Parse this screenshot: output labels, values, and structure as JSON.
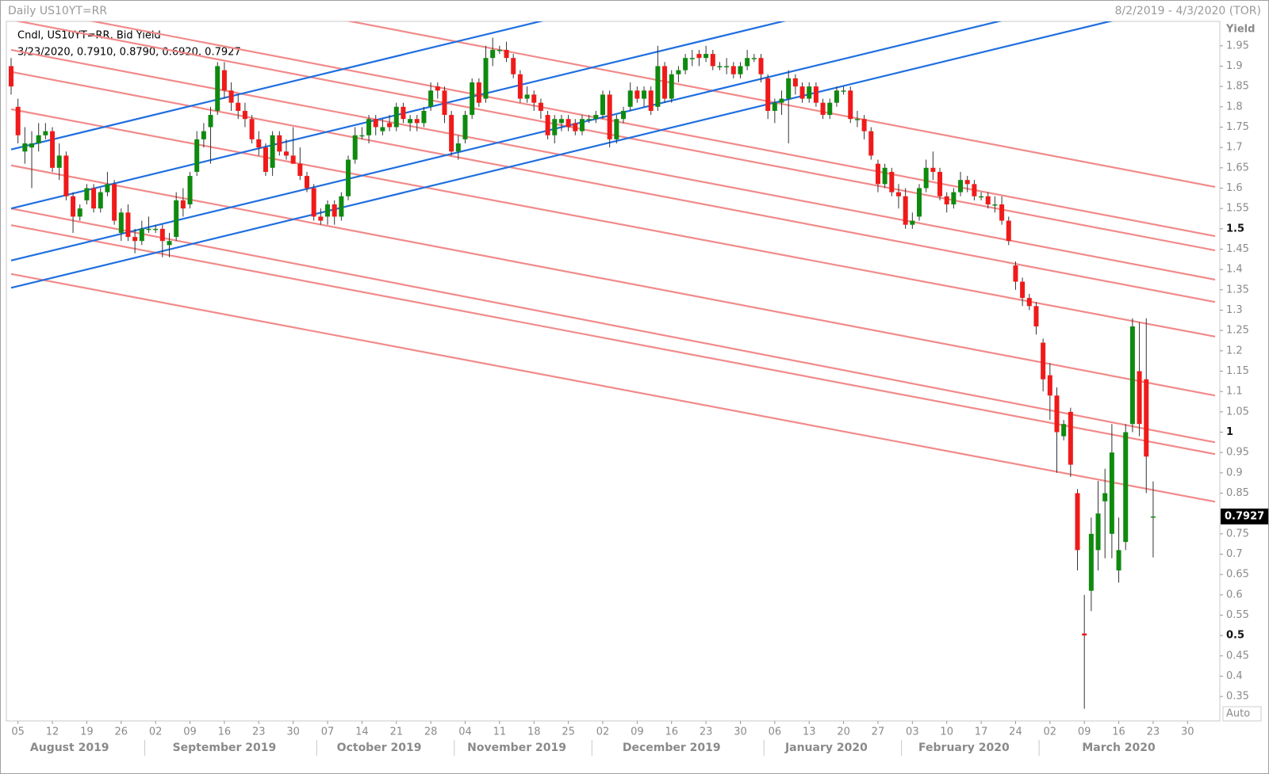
{
  "chart_data": {
    "type": "candlestick",
    "title": "Daily US10YT=RR",
    "subtitle": "8/2/2019 - 4/3/2020 (TOR)",
    "legend": "Cndl, US10YT=RR, Bid Yield",
    "info_line": "3/23/2020, 0.7910, 0.8790, 0.6920, 0.7927",
    "y_label": "Yield",
    "scale_label": "Auto",
    "close_label": "0.7927",
    "up_color": "#0f8a0f",
    "down_color": "#f01a1a",
    "xlim": [
      "8/2/2019",
      "4/3/2020"
    ],
    "ylim": [
      0.29,
      2.01
    ],
    "yticks": [
      0.35,
      0.4,
      0.45,
      0.5,
      0.55,
      0.6,
      0.65,
      0.7,
      0.75,
      0.85,
      0.9,
      0.95,
      1,
      1.05,
      1.1,
      1.15,
      1.2,
      1.25,
      1.3,
      1.35,
      1.4,
      1.45,
      1.5,
      1.55,
      1.6,
      1.65,
      1.7,
      1.75,
      1.8,
      1.85,
      1.9,
      1.95
    ],
    "xticks": [
      {
        "value": "8/5/2019",
        "label": "05"
      },
      {
        "value": "8/12/2019",
        "label": "12"
      },
      {
        "value": "8/19/2019",
        "label": "19"
      },
      {
        "value": "8/26/2019",
        "label": "26"
      },
      {
        "value": "9/2/2019",
        "label": "02"
      },
      {
        "value": "9/9/2019",
        "label": "09"
      },
      {
        "value": "9/16/2019",
        "label": "16"
      },
      {
        "value": "9/23/2019",
        "label": "23"
      },
      {
        "value": "9/30/2019",
        "label": "30"
      },
      {
        "value": "10/7/2019",
        "label": "07"
      },
      {
        "value": "10/14/2019",
        "label": "14"
      },
      {
        "value": "10/21/2019",
        "label": "21"
      },
      {
        "value": "10/28/2019",
        "label": "28"
      },
      {
        "value": "11/4/2019",
        "label": "04"
      },
      {
        "value": "11/11/2019",
        "label": "11"
      },
      {
        "value": "11/18/2019",
        "label": "18"
      },
      {
        "value": "11/25/2019",
        "label": "25"
      },
      {
        "value": "12/2/2019",
        "label": "02"
      },
      {
        "value": "12/9/2019",
        "label": "09"
      },
      {
        "value": "12/16/2019",
        "label": "16"
      },
      {
        "value": "12/23/2019",
        "label": "23"
      },
      {
        "value": "12/30/2019",
        "label": "30"
      },
      {
        "value": "1/6/2020",
        "label": "06"
      },
      {
        "value": "1/13/2020",
        "label": "13"
      },
      {
        "value": "1/20/2020",
        "label": "20"
      },
      {
        "value": "1/27/2020",
        "label": "27"
      },
      {
        "value": "2/3/2020",
        "label": "03"
      },
      {
        "value": "2/10/2020",
        "label": "10"
      },
      {
        "value": "2/17/2020",
        "label": "17"
      },
      {
        "value": "2/24/2020",
        "label": "24"
      },
      {
        "value": "3/2/2020",
        "label": "02"
      },
      {
        "value": "3/9/2020",
        "label": "09"
      },
      {
        "value": "3/16/2020",
        "label": "16"
      },
      {
        "value": "3/23/2020",
        "label": "23"
      },
      {
        "value": "3/30/2020",
        "label": "30"
      }
    ],
    "months": [
      "August 2019",
      "September 2019",
      "October 2019",
      "November 2019",
      "December 2019",
      "January 2020",
      "February 2020",
      "March 2020"
    ],
    "trendlines": [
      {
        "color": "#f28a8a",
        "start": 2.17,
        "end": 1.603
      },
      {
        "color": "#f28a8a",
        "start": 2.049,
        "end": 1.482
      },
      {
        "color": "#f28a8a",
        "start": 2.014,
        "end": 1.447
      },
      {
        "color": "#f28a8a",
        "start": 1.94,
        "end": 1.375
      },
      {
        "color": "#f28a8a",
        "start": 1.886,
        "end": 1.32
      },
      {
        "color": "#f28a8a",
        "start": 1.794,
        "end": 1.235
      },
      {
        "color": "#f28a8a",
        "start": 1.656,
        "end": 1.09
      },
      {
        "color": "#f28a8a",
        "start": 1.55,
        "end": 0.975
      },
      {
        "color": "#f28a8a",
        "start": 1.509,
        "end": 0.946
      },
      {
        "color": "#f28a8a",
        "start": 1.389,
        "end": 0.829
      },
      {
        "color": "#1f6fe0",
        "start": 1.695,
        "end": 2.412
      },
      {
        "color": "#1f6fe0",
        "start": 1.55,
        "end": 2.268
      },
      {
        "color": "#1f6fe0",
        "start": 1.422,
        "end": 2.139
      },
      {
        "color": "#1f6fe0",
        "start": 1.355,
        "end": 2.073
      }
    ],
    "x": [
      "8/2/2019",
      "8/5/2019",
      "8/6/2019",
      "8/7/2019",
      "8/8/2019",
      "8/9/2019",
      "8/12/2019",
      "8/13/2019",
      "8/14/2019",
      "8/15/2019",
      "8/16/2019",
      "8/19/2019",
      "8/20/2019",
      "8/21/2019",
      "8/22/2019",
      "8/23/2019",
      "8/26/2019",
      "8/27/2019",
      "8/28/2019",
      "8/29/2019",
      "8/30/2019",
      "9/2/2019",
      "9/3/2019",
      "9/4/2019",
      "9/5/2019",
      "9/6/2019",
      "9/9/2019",
      "9/10/2019",
      "9/11/2019",
      "9/12/2019",
      "9/13/2019",
      "9/16/2019",
      "9/17/2019",
      "9/18/2019",
      "9/19/2019",
      "9/20/2019",
      "9/23/2019",
      "9/24/2019",
      "9/25/2019",
      "9/26/2019",
      "9/27/2019",
      "9/30/2019",
      "10/1/2019",
      "10/2/2019",
      "10/3/2019",
      "10/4/2019",
      "10/7/2019",
      "10/8/2019",
      "10/9/2019",
      "10/10/2019",
      "10/11/2019",
      "10/14/2019",
      "10/15/2019",
      "10/16/2019",
      "10/17/2019",
      "10/18/2019",
      "10/21/2019",
      "10/22/2019",
      "10/23/2019",
      "10/24/2019",
      "10/25/2019",
      "10/28/2019",
      "10/29/2019",
      "10/30/2019",
      "10/31/2019",
      "11/1/2019",
      "11/4/2019",
      "11/5/2019",
      "11/6/2019",
      "11/7/2019",
      "11/8/2019",
      "11/11/2019",
      "11/12/2019",
      "11/13/2019",
      "11/14/2019",
      "11/15/2019",
      "11/18/2019",
      "11/19/2019",
      "11/20/2019",
      "11/21/2019",
      "11/22/2019",
      "11/25/2019",
      "11/26/2019",
      "11/27/2019",
      "11/28/2019",
      "11/29/2019",
      "12/2/2019",
      "12/3/2019",
      "12/4/2019",
      "12/5/2019",
      "12/6/2019",
      "12/9/2019",
      "12/10/2019",
      "12/11/2019",
      "12/12/2019",
      "12/13/2019",
      "12/16/2019",
      "12/17/2019",
      "12/18/2019",
      "12/19/2019",
      "12/20/2019",
      "12/23/2019",
      "12/24/2019",
      "12/25/2019",
      "12/26/2019",
      "12/27/2019",
      "12/30/2019",
      "12/31/2019",
      "1/1/2020",
      "1/2/2020",
      "1/3/2020",
      "1/6/2020",
      "1/7/2020",
      "1/8/2020",
      "1/9/2020",
      "1/10/2020",
      "1/13/2020",
      "1/14/2020",
      "1/15/2020",
      "1/16/2020",
      "1/17/2020",
      "1/20/2020",
      "1/21/2020",
      "1/22/2020",
      "1/23/2020",
      "1/24/2020",
      "1/27/2020",
      "1/28/2020",
      "1/29/2020",
      "1/30/2020",
      "1/31/2020",
      "2/3/2020",
      "2/4/2020",
      "2/5/2020",
      "2/6/2020",
      "2/7/2020",
      "2/10/2020",
      "2/11/2020",
      "2/12/2020",
      "2/13/2020",
      "2/14/2020",
      "2/17/2020",
      "2/18/2020",
      "2/19/2020",
      "2/20/2020",
      "2/21/2020",
      "2/24/2020",
      "2/25/2020",
      "2/26/2020",
      "2/27/2020",
      "2/28/2020",
      "3/2/2020",
      "3/3/2020",
      "3/4/2020",
      "3/5/2020",
      "3/6/2020",
      "3/9/2020",
      "3/10/2020",
      "3/11/2020",
      "3/12/2020",
      "3/13/2020",
      "3/16/2020",
      "3/17/2020",
      "3/18/2020",
      "3/19/2020",
      "3/20/2020",
      "3/23/2020"
    ],
    "ohlc": [
      [
        1.9,
        1.92,
        1.83,
        1.85
      ],
      [
        1.8,
        1.82,
        1.71,
        1.73
      ],
      [
        1.69,
        1.75,
        1.66,
        1.71
      ],
      [
        1.7,
        1.74,
        1.6,
        1.71
      ],
      [
        1.71,
        1.76,
        1.69,
        1.73
      ],
      [
        1.73,
        1.76,
        1.72,
        1.74
      ],
      [
        1.74,
        1.75,
        1.64,
        1.65
      ],
      [
        1.65,
        1.71,
        1.62,
        1.68
      ],
      [
        1.68,
        1.69,
        1.57,
        1.58
      ],
      [
        1.58,
        1.59,
        1.49,
        1.53
      ],
      [
        1.53,
        1.56,
        1.52,
        1.55
      ],
      [
        1.57,
        1.61,
        1.56,
        1.6
      ],
      [
        1.6,
        1.61,
        1.54,
        1.55
      ],
      [
        1.55,
        1.6,
        1.54,
        1.59
      ],
      [
        1.59,
        1.64,
        1.58,
        1.61
      ],
      [
        1.61,
        1.62,
        1.51,
        1.52
      ],
      [
        1.49,
        1.55,
        1.47,
        1.54
      ],
      [
        1.54,
        1.56,
        1.47,
        1.48
      ],
      [
        1.48,
        1.5,
        1.44,
        1.47
      ],
      [
        1.47,
        1.52,
        1.46,
        1.5
      ],
      [
        1.5,
        1.53,
        1.49,
        1.5
      ],
      [
        1.5,
        1.51,
        1.49,
        1.5
      ],
      [
        1.5,
        1.51,
        1.43,
        1.47
      ],
      [
        1.46,
        1.49,
        1.43,
        1.47
      ],
      [
        1.48,
        1.59,
        1.47,
        1.57
      ],
      [
        1.57,
        1.6,
        1.53,
        1.55
      ],
      [
        1.56,
        1.64,
        1.55,
        1.63
      ],
      [
        1.64,
        1.74,
        1.63,
        1.72
      ],
      [
        1.72,
        1.76,
        1.7,
        1.74
      ],
      [
        1.75,
        1.8,
        1.66,
        1.78
      ],
      [
        1.79,
        1.91,
        1.78,
        1.9
      ],
      [
        1.89,
        1.91,
        1.82,
        1.84
      ],
      [
        1.84,
        1.86,
        1.79,
        1.81
      ],
      [
        1.81,
        1.83,
        1.77,
        1.79
      ],
      [
        1.79,
        1.81,
        1.75,
        1.77
      ],
      [
        1.77,
        1.78,
        1.71,
        1.72
      ],
      [
        1.72,
        1.74,
        1.68,
        1.7
      ],
      [
        1.7,
        1.71,
        1.63,
        1.64
      ],
      [
        1.65,
        1.74,
        1.63,
        1.73
      ],
      [
        1.73,
        1.74,
        1.68,
        1.69
      ],
      [
        1.69,
        1.72,
        1.67,
        1.68
      ],
      [
        1.68,
        1.75,
        1.66,
        1.66
      ],
      [
        1.66,
        1.7,
        1.62,
        1.63
      ],
      [
        1.63,
        1.64,
        1.59,
        1.6
      ],
      [
        1.6,
        1.61,
        1.52,
        1.53
      ],
      [
        1.53,
        1.55,
        1.51,
        1.52
      ],
      [
        1.53,
        1.57,
        1.51,
        1.56
      ],
      [
        1.56,
        1.57,
        1.51,
        1.53
      ],
      [
        1.53,
        1.59,
        1.52,
        1.58
      ],
      [
        1.58,
        1.68,
        1.57,
        1.67
      ],
      [
        1.67,
        1.75,
        1.66,
        1.73
      ],
      [
        1.73,
        1.75,
        1.72,
        1.73
      ],
      [
        1.73,
        1.78,
        1.71,
        1.77
      ],
      [
        1.77,
        1.78,
        1.73,
        1.75
      ],
      [
        1.74,
        1.77,
        1.73,
        1.75
      ],
      [
        1.76,
        1.78,
        1.74,
        1.75
      ],
      [
        1.75,
        1.81,
        1.74,
        1.8
      ],
      [
        1.8,
        1.81,
        1.76,
        1.77
      ],
      [
        1.76,
        1.78,
        1.74,
        1.77
      ],
      [
        1.77,
        1.78,
        1.74,
        1.76
      ],
      [
        1.76,
        1.8,
        1.75,
        1.79
      ],
      [
        1.8,
        1.86,
        1.79,
        1.84
      ],
      [
        1.85,
        1.86,
        1.82,
        1.84
      ],
      [
        1.84,
        1.85,
        1.76,
        1.78
      ],
      [
        1.78,
        1.79,
        1.68,
        1.69
      ],
      [
        1.69,
        1.73,
        1.67,
        1.71
      ],
      [
        1.72,
        1.79,
        1.71,
        1.78
      ],
      [
        1.78,
        1.87,
        1.77,
        1.86
      ],
      [
        1.86,
        1.87,
        1.8,
        1.81
      ],
      [
        1.82,
        1.95,
        1.81,
        1.92
      ],
      [
        1.92,
        1.97,
        1.9,
        1.94
      ],
      [
        1.94,
        1.95,
        1.93,
        1.94
      ],
      [
        1.94,
        1.96,
        1.91,
        1.92
      ],
      [
        1.92,
        1.93,
        1.87,
        1.88
      ],
      [
        1.88,
        1.89,
        1.81,
        1.82
      ],
      [
        1.82,
        1.85,
        1.81,
        1.83
      ],
      [
        1.83,
        1.84,
        1.79,
        1.81
      ],
      [
        1.81,
        1.82,
        1.77,
        1.79
      ],
      [
        1.78,
        1.79,
        1.72,
        1.73
      ],
      [
        1.73,
        1.78,
        1.71,
        1.77
      ],
      [
        1.76,
        1.78,
        1.74,
        1.77
      ],
      [
        1.77,
        1.78,
        1.74,
        1.75
      ],
      [
        1.76,
        1.77,
        1.73,
        1.74
      ],
      [
        1.74,
        1.78,
        1.73,
        1.77
      ],
      [
        1.77,
        1.78,
        1.76,
        1.77
      ],
      [
        1.77,
        1.79,
        1.76,
        1.78
      ],
      [
        1.78,
        1.84,
        1.77,
        1.83
      ],
      [
        1.83,
        1.84,
        1.7,
        1.72
      ],
      [
        1.72,
        1.78,
        1.71,
        1.77
      ],
      [
        1.77,
        1.8,
        1.76,
        1.79
      ],
      [
        1.8,
        1.86,
        1.79,
        1.84
      ],
      [
        1.84,
        1.85,
        1.81,
        1.82
      ],
      [
        1.82,
        1.85,
        1.8,
        1.84
      ],
      [
        1.84,
        1.85,
        1.78,
        1.79
      ],
      [
        1.8,
        1.95,
        1.79,
        1.9
      ],
      [
        1.9,
        1.91,
        1.81,
        1.82
      ],
      [
        1.82,
        1.89,
        1.81,
        1.88
      ],
      [
        1.88,
        1.9,
        1.86,
        1.89
      ],
      [
        1.89,
        1.93,
        1.88,
        1.92
      ],
      [
        1.92,
        1.94,
        1.9,
        1.92
      ],
      [
        1.93,
        1.94,
        1.9,
        1.92
      ],
      [
        1.92,
        1.95,
        1.91,
        1.93
      ],
      [
        1.93,
        1.94,
        1.89,
        1.9
      ],
      [
        1.9,
        1.91,
        1.89,
        1.9
      ],
      [
        1.9,
        1.92,
        1.88,
        1.9
      ],
      [
        1.9,
        1.91,
        1.87,
        1.88
      ],
      [
        1.88,
        1.91,
        1.87,
        1.9
      ],
      [
        1.9,
        1.94,
        1.89,
        1.92
      ],
      [
        1.92,
        1.93,
        1.91,
        1.92
      ],
      [
        1.92,
        1.93,
        1.86,
        1.88
      ],
      [
        1.87,
        1.88,
        1.77,
        1.79
      ],
      [
        1.79,
        1.82,
        1.76,
        1.81
      ],
      [
        1.81,
        1.84,
        1.78,
        1.82
      ],
      [
        1.82,
        1.89,
        1.71,
        1.87
      ],
      [
        1.87,
        1.88,
        1.83,
        1.85
      ],
      [
        1.85,
        1.86,
        1.81,
        1.82
      ],
      [
        1.82,
        1.86,
        1.81,
        1.85
      ],
      [
        1.85,
        1.86,
        1.8,
        1.81
      ],
      [
        1.81,
        1.82,
        1.77,
        1.78
      ],
      [
        1.78,
        1.82,
        1.77,
        1.81
      ],
      [
        1.81,
        1.85,
        1.8,
        1.84
      ],
      [
        1.84,
        1.85,
        1.83,
        1.84
      ],
      [
        1.84,
        1.85,
        1.76,
        1.77
      ],
      [
        1.77,
        1.79,
        1.75,
        1.77
      ],
      [
        1.77,
        1.78,
        1.72,
        1.74
      ],
      [
        1.74,
        1.75,
        1.67,
        1.68
      ],
      [
        1.66,
        1.67,
        1.59,
        1.61
      ],
      [
        1.61,
        1.66,
        1.6,
        1.65
      ],
      [
        1.64,
        1.65,
        1.58,
        1.59
      ],
      [
        1.59,
        1.61,
        1.55,
        1.58
      ],
      [
        1.58,
        1.6,
        1.5,
        1.51
      ],
      [
        1.51,
        1.54,
        1.5,
        1.52
      ],
      [
        1.53,
        1.61,
        1.52,
        1.6
      ],
      [
        1.6,
        1.67,
        1.59,
        1.65
      ],
      [
        1.65,
        1.69,
        1.62,
        1.64
      ],
      [
        1.64,
        1.65,
        1.57,
        1.58
      ],
      [
        1.58,
        1.59,
        1.54,
        1.56
      ],
      [
        1.56,
        1.6,
        1.55,
        1.59
      ],
      [
        1.59,
        1.64,
        1.58,
        1.62
      ],
      [
        1.62,
        1.63,
        1.59,
        1.61
      ],
      [
        1.61,
        1.62,
        1.57,
        1.58
      ],
      [
        1.58,
        1.59,
        1.57,
        1.58
      ],
      [
        1.58,
        1.59,
        1.55,
        1.56
      ],
      [
        1.56,
        1.58,
        1.54,
        1.56
      ],
      [
        1.56,
        1.58,
        1.51,
        1.52
      ],
      [
        1.52,
        1.53,
        1.46,
        1.47
      ],
      [
        1.41,
        1.42,
        1.35,
        1.37
      ],
      [
        1.37,
        1.38,
        1.31,
        1.33
      ],
      [
        1.33,
        1.34,
        1.3,
        1.31
      ],
      [
        1.31,
        1.32,
        1.24,
        1.26
      ],
      [
        1.22,
        1.23,
        1.1,
        1.13
      ],
      [
        1.14,
        1.17,
        1.03,
        1.09
      ],
      [
        1.09,
        1.11,
        0.9,
        1.0
      ],
      [
        0.99,
        1.03,
        0.98,
        1.02
      ],
      [
        1.05,
        1.06,
        0.89,
        0.92
      ],
      [
        0.85,
        0.86,
        0.66,
        0.71
      ],
      [
        0.505,
        0.6,
        0.32,
        0.5
      ],
      [
        0.61,
        0.79,
        0.56,
        0.75
      ],
      [
        0.71,
        0.88,
        0.66,
        0.8
      ],
      [
        0.83,
        0.91,
        0.69,
        0.85
      ],
      [
        0.75,
        1.02,
        0.69,
        0.95
      ],
      [
        0.66,
        0.79,
        0.63,
        0.71
      ],
      [
        0.73,
        1.02,
        0.71,
        1.0
      ],
      [
        1.02,
        1.28,
        1.0,
        1.26
      ],
      [
        1.15,
        1.27,
        0.99,
        1.02
      ],
      [
        1.13,
        1.28,
        0.85,
        0.94
      ],
      [
        0.791,
        0.879,
        0.692,
        0.7927
      ]
    ]
  }
}
